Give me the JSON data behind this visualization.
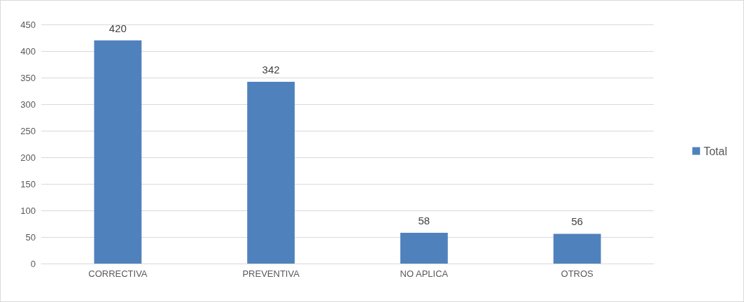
{
  "chart_data": {
    "type": "bar",
    "categories": [
      "CORRECTIVA",
      "PREVENTIVA",
      "NO APLICA",
      "OTROS"
    ],
    "series": [
      {
        "name": "Total",
        "color": "#4f81bd",
        "values": [
          420,
          342,
          58,
          56
        ]
      }
    ],
    "ylim": [
      0,
      450
    ],
    "yticks": [
      0,
      50,
      100,
      150,
      200,
      250,
      300,
      350,
      400,
      450
    ],
    "grid": "y",
    "legend": "right",
    "data_labels": true
  }
}
